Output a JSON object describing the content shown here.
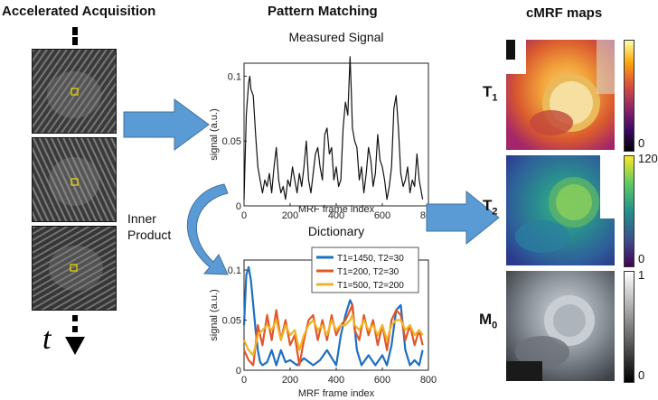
{
  "titles": {
    "acquisition": "Accelerated Acquisition",
    "matching": "Pattern Matching",
    "maps": "cMRF maps"
  },
  "acquisition": {
    "time_symbol": "t",
    "frame_count": 3
  },
  "inner_product": {
    "line1": "Inner",
    "line2": "Product"
  },
  "maps": [
    {
      "label_main": "T",
      "label_sub": "1",
      "colormap": "inferno-like",
      "colorbar_max": "",
      "colorbar_min": "0"
    },
    {
      "label_main": "T",
      "label_sub": "2",
      "colormap": "viridis-like",
      "colorbar_max": "120",
      "colorbar_min": "0"
    },
    {
      "label_main": "M",
      "label_sub": "0",
      "colormap": "grayscale",
      "colorbar_max": "1",
      "colorbar_min": "0"
    }
  ],
  "colors": {
    "arrow": "#5b9bd5",
    "roi_box": "#e8d400",
    "series_blue": "#1f6fbf",
    "series_orange": "#e2572a",
    "series_yellow": "#f0b323"
  },
  "chart_data": [
    {
      "type": "line",
      "title": "Measured Signal",
      "xlabel": "MRF frame index",
      "ylabel": "signal (a.u.)",
      "xlim": [
        0,
        800
      ],
      "ylim": [
        0,
        0.11
      ],
      "xticks": [
        "0",
        "200",
        "400",
        "600",
        "800"
      ],
      "yticks": [
        "0",
        "0.05",
        "0.1"
      ],
      "series": [
        {
          "values_x": [
            0,
            10,
            20,
            25,
            30,
            40,
            50,
            60,
            70,
            80,
            90,
            100,
            110,
            120,
            130,
            140,
            150,
            160,
            170,
            180,
            190,
            200,
            210,
            220,
            230,
            240,
            250,
            260,
            270,
            280,
            290,
            300,
            310,
            320,
            330,
            340,
            350,
            360,
            370,
            380,
            390,
            400,
            410,
            420,
            430,
            440,
            450,
            460,
            465,
            470,
            480,
            490,
            500,
            510,
            520,
            530,
            540,
            550,
            560,
            570,
            580,
            590,
            600,
            610,
            620,
            630,
            640,
            650,
            660,
            670,
            680,
            690,
            700,
            710,
            720,
            730,
            740,
            750,
            760,
            770,
            775
          ],
          "values_y": [
            0.005,
            0.07,
            0.095,
            0.1,
            0.09,
            0.085,
            0.055,
            0.03,
            0.02,
            0.01,
            0.02,
            0.015,
            0.025,
            0.01,
            0.03,
            0.045,
            0.02,
            0.01,
            0.015,
            0.005,
            0.02,
            0.015,
            0.03,
            0.02,
            0.01,
            0.025,
            0.015,
            0.03,
            0.05,
            0.02,
            0.01,
            0.025,
            0.04,
            0.045,
            0.03,
            0.02,
            0.055,
            0.06,
            0.04,
            0.045,
            0.02,
            0.03,
            0.015,
            0.02,
            0.06,
            0.08,
            0.07,
            0.115,
            0.09,
            0.06,
            0.05,
            0.045,
            0.02,
            0.03,
            0.01,
            0.025,
            0.045,
            0.035,
            0.015,
            0.025,
            0.055,
            0.035,
            0.03,
            0.02,
            0.005,
            0.015,
            0.03,
            0.075,
            0.085,
            0.06,
            0.025,
            0.015,
            0.02,
            0.03,
            0.01,
            0.02,
            0.015,
            0.04,
            0.02,
            0.01,
            0.005
          ]
        }
      ]
    },
    {
      "type": "line",
      "title": "Dictionary",
      "xlabel": "MRF frame index",
      "ylabel": "signal (a.u.)",
      "xlim": [
        0,
        800
      ],
      "ylim": [
        0,
        0.11
      ],
      "xticks": [
        "0",
        "200",
        "400",
        "600",
        "800"
      ],
      "yticks": [
        "0",
        "0.05",
        "0.1"
      ],
      "legend": "top-right",
      "series": [
        {
          "name": "T1=1450, T2=30",
          "color": "#1f6fbf",
          "x": [
            0,
            10,
            20,
            30,
            40,
            50,
            60,
            70,
            80,
            100,
            120,
            140,
            160,
            180,
            200,
            230,
            260,
            300,
            330,
            360,
            400,
            420,
            440,
            460,
            470,
            490,
            510,
            540,
            570,
            600,
            620,
            640,
            660,
            680,
            700,
            720,
            740,
            760,
            775
          ],
          "y": [
            0.045,
            0.095,
            0.103,
            0.09,
            0.065,
            0.04,
            0.02,
            0.008,
            0.005,
            0.008,
            0.02,
            0.005,
            0.02,
            0.008,
            0.01,
            0.005,
            0.012,
            0.005,
            0.01,
            0.02,
            0.005,
            0.035,
            0.055,
            0.07,
            0.065,
            0.02,
            0.005,
            0.015,
            0.005,
            0.015,
            0.005,
            0.025,
            0.06,
            0.065,
            0.02,
            0.005,
            0.01,
            0.005,
            0.02
          ]
        },
        {
          "name": "T1=200, T2=30",
          "color": "#e2572a",
          "x": [
            0,
            20,
            40,
            60,
            80,
            100,
            120,
            140,
            160,
            180,
            200,
            220,
            240,
            260,
            280,
            300,
            320,
            340,
            360,
            380,
            400,
            420,
            440,
            460,
            470,
            480,
            500,
            520,
            540,
            560,
            580,
            600,
            620,
            640,
            660,
            680,
            700,
            720,
            740,
            760,
            775
          ],
          "y": [
            0.02,
            0.01,
            0.005,
            0.045,
            0.025,
            0.055,
            0.03,
            0.06,
            0.03,
            0.05,
            0.025,
            0.035,
            0.005,
            0.03,
            0.05,
            0.055,
            0.03,
            0.05,
            0.03,
            0.055,
            0.035,
            0.045,
            0.05,
            0.06,
            0.065,
            0.04,
            0.03,
            0.055,
            0.035,
            0.05,
            0.025,
            0.045,
            0.02,
            0.05,
            0.06,
            0.055,
            0.03,
            0.045,
            0.025,
            0.04,
            0.025
          ]
        },
        {
          "name": "T1=500, T2=200",
          "color": "#f0b323",
          "x": [
            0,
            20,
            40,
            60,
            80,
            100,
            120,
            140,
            160,
            180,
            200,
            220,
            240,
            260,
            280,
            300,
            320,
            340,
            360,
            380,
            400,
            420,
            440,
            460,
            470,
            480,
            500,
            520,
            540,
            560,
            580,
            600,
            620,
            640,
            660,
            680,
            700,
            720,
            740,
            760,
            775
          ],
          "y": [
            0.03,
            0.02,
            0.015,
            0.035,
            0.04,
            0.045,
            0.04,
            0.05,
            0.03,
            0.045,
            0.035,
            0.04,
            0.02,
            0.035,
            0.045,
            0.05,
            0.04,
            0.045,
            0.035,
            0.05,
            0.04,
            0.045,
            0.045,
            0.05,
            0.055,
            0.045,
            0.04,
            0.05,
            0.04,
            0.045,
            0.035,
            0.045,
            0.03,
            0.045,
            0.05,
            0.05,
            0.04,
            0.045,
            0.035,
            0.04,
            0.035
          ]
        }
      ]
    }
  ]
}
